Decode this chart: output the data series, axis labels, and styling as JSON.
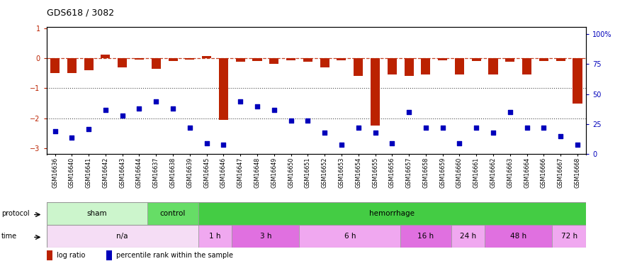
{
  "title": "GDS618 / 3082",
  "samples": [
    "GSM16636",
    "GSM16640",
    "GSM16641",
    "GSM16642",
    "GSM16643",
    "GSM16644",
    "GSM16637",
    "GSM16638",
    "GSM16639",
    "GSM16645",
    "GSM16646",
    "GSM16647",
    "GSM16648",
    "GSM16649",
    "GSM16650",
    "GSM16651",
    "GSM16652",
    "GSM16653",
    "GSM16654",
    "GSM16655",
    "GSM16656",
    "GSM16657",
    "GSM16658",
    "GSM16659",
    "GSM16660",
    "GSM16661",
    "GSM16662",
    "GSM16663",
    "GSM16664",
    "GSM16666",
    "GSM16667",
    "GSM16668"
  ],
  "log_ratio": [
    -0.5,
    -0.5,
    -0.4,
    0.12,
    -0.3,
    -0.05,
    -0.35,
    -0.1,
    -0.05,
    0.08,
    -2.05,
    -0.12,
    -0.1,
    -0.18,
    -0.08,
    -0.12,
    -0.3,
    -0.08,
    -0.6,
    -2.25,
    -0.55,
    -0.6,
    -0.55,
    -0.08,
    -0.55,
    -0.1,
    -0.55,
    -0.12,
    -0.55,
    -0.1,
    -0.1,
    -1.5
  ],
  "percentile": [
    19,
    14,
    21,
    37,
    32,
    38,
    44,
    38,
    22,
    9,
    8,
    44,
    40,
    37,
    28,
    28,
    18,
    8,
    22,
    18,
    9,
    35,
    22,
    22,
    9,
    22,
    18,
    35,
    22,
    22,
    15,
    8
  ],
  "protocol_groups": [
    {
      "label": "sham",
      "start": 0,
      "end": 6,
      "color": "#ccf5cc"
    },
    {
      "label": "control",
      "start": 6,
      "end": 9,
      "color": "#66dd66"
    },
    {
      "label": "hemorrhage",
      "start": 9,
      "end": 32,
      "color": "#44cc44"
    }
  ],
  "time_groups": [
    {
      "label": "n/a",
      "start": 0,
      "end": 9,
      "color": "#f5ddf5"
    },
    {
      "label": "1 h",
      "start": 9,
      "end": 11,
      "color": "#f0a8f0"
    },
    {
      "label": "3 h",
      "start": 11,
      "end": 15,
      "color": "#e070e0"
    },
    {
      "label": "6 h",
      "start": 15,
      "end": 21,
      "color": "#f0a8f0"
    },
    {
      "label": "16 h",
      "start": 21,
      "end": 24,
      "color": "#e070e0"
    },
    {
      "label": "24 h",
      "start": 24,
      "end": 26,
      "color": "#f0a8f0"
    },
    {
      "label": "48 h",
      "start": 26,
      "end": 30,
      "color": "#e070e0"
    },
    {
      "label": "72 h",
      "start": 30,
      "end": 32,
      "color": "#f0a8f0"
    }
  ],
  "bar_color": "#bb2200",
  "dot_color": "#0000bb",
  "ylim_left": [
    -3.2,
    1.05
  ],
  "ylim_right": [
    0,
    106
  ],
  "yticks_left": [
    1,
    0,
    -1,
    -2,
    -3
  ],
  "yticks_right": [
    0,
    25,
    50,
    75,
    100
  ]
}
